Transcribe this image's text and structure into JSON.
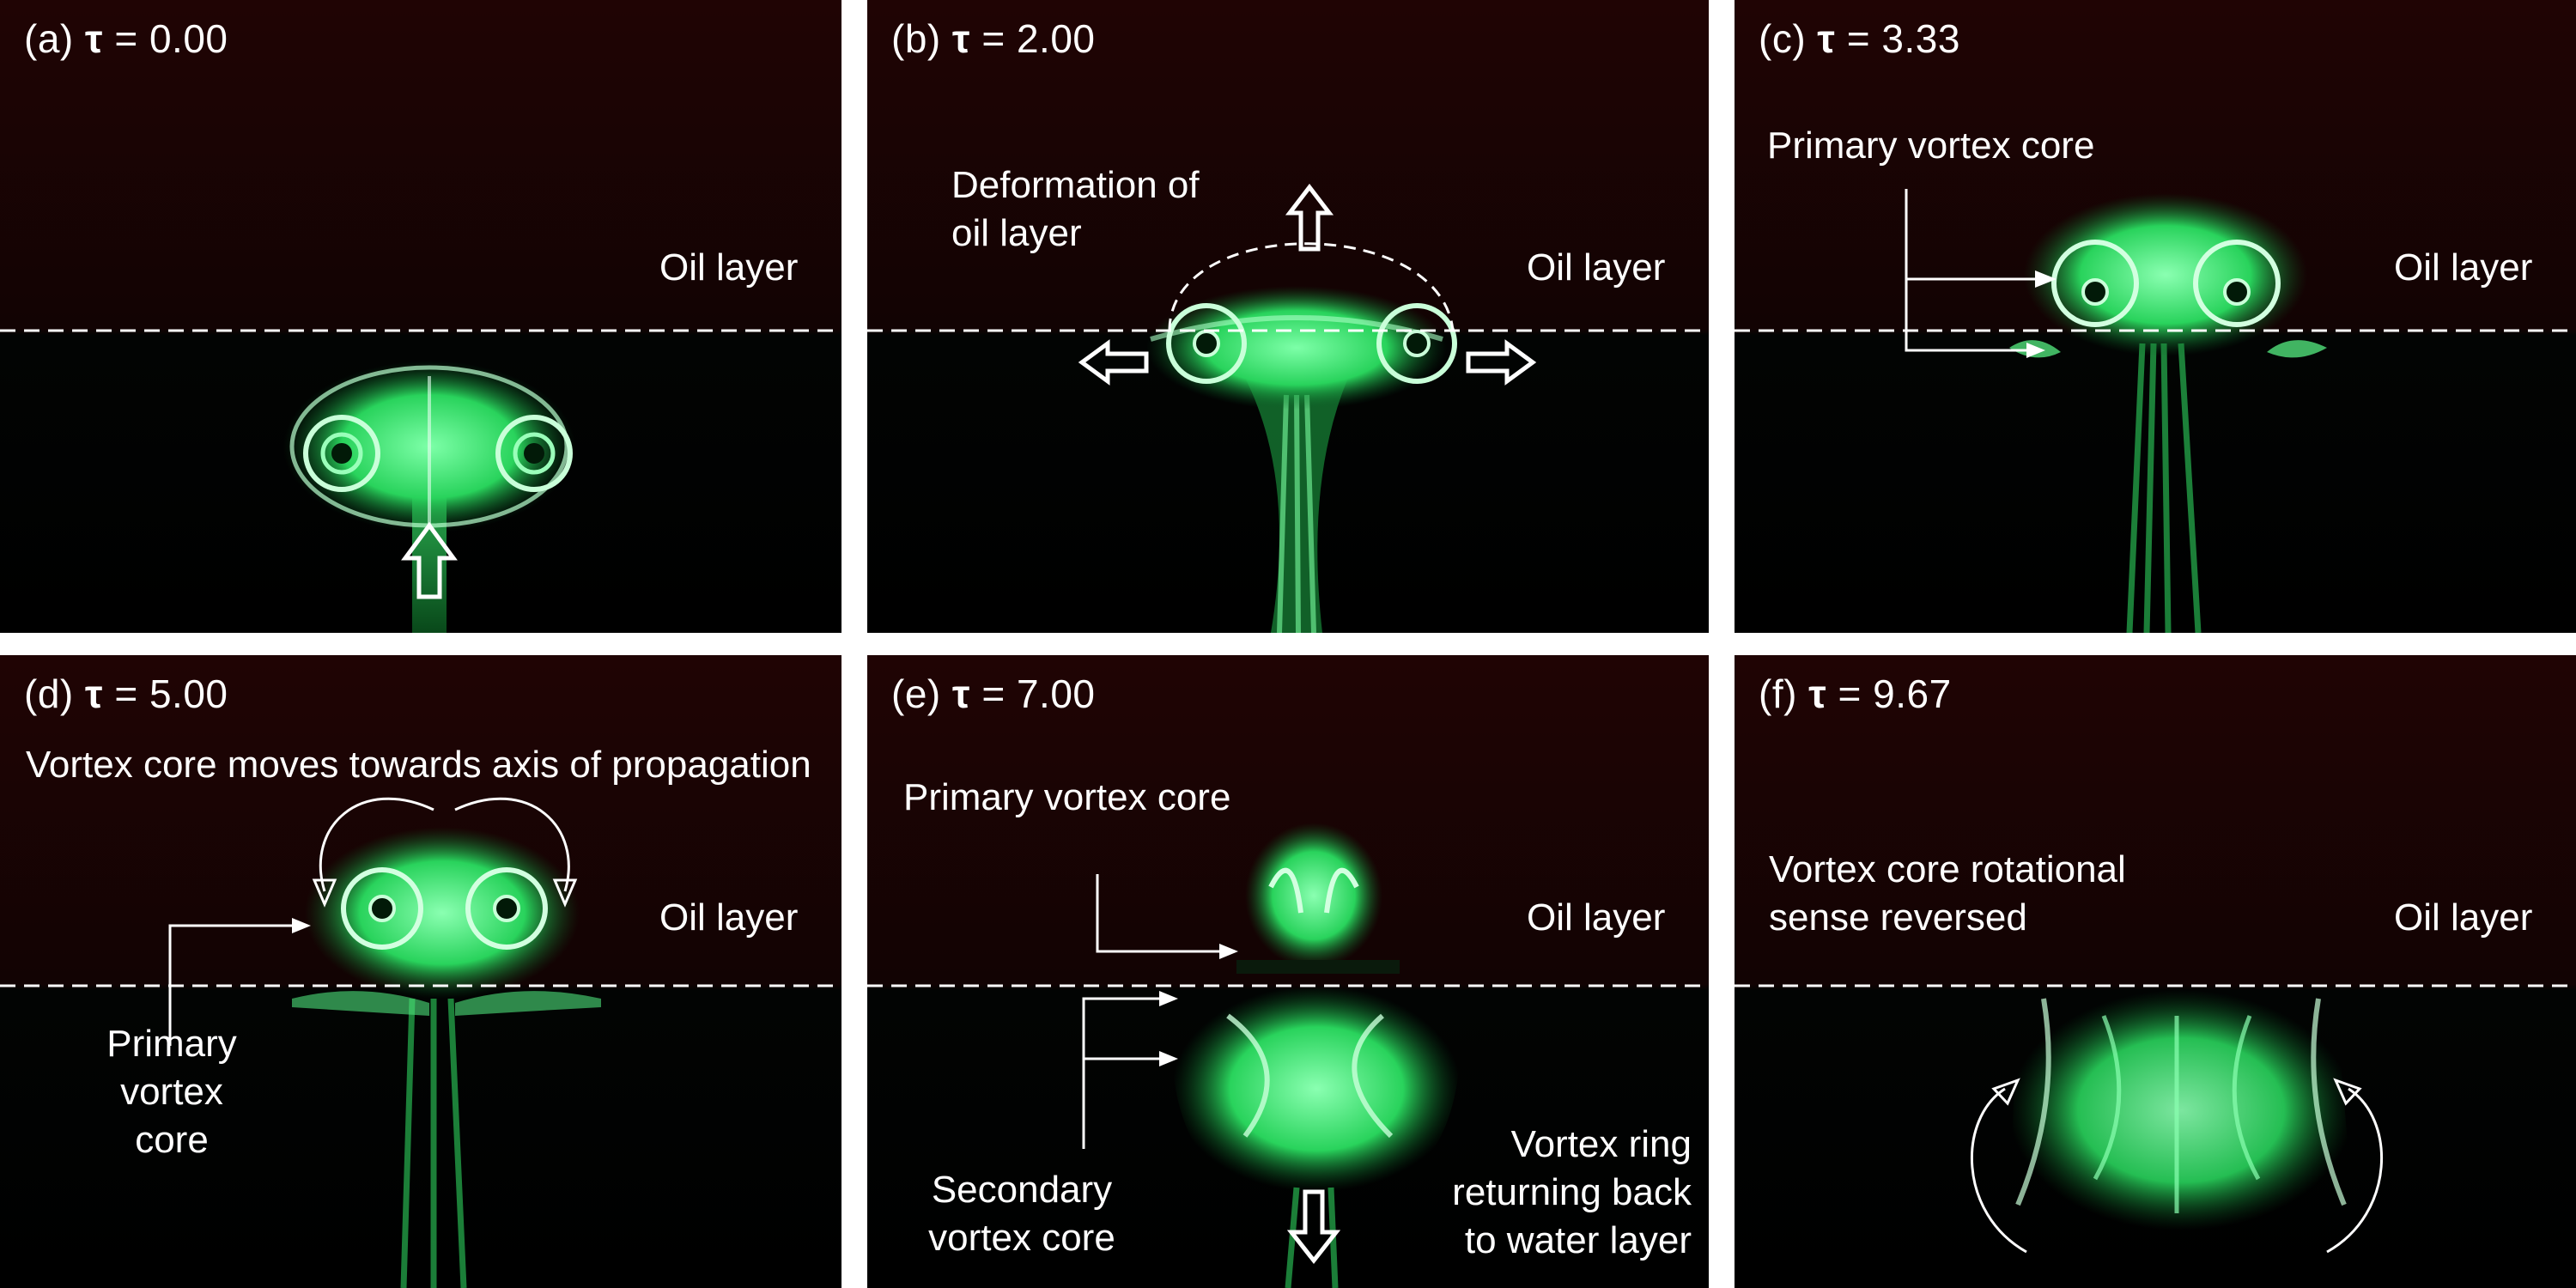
{
  "panels": [
    {
      "id": "a",
      "letter": "(a)",
      "tau": "τ",
      "value": "= 0.00",
      "oil": "Oil layer"
    },
    {
      "id": "b",
      "letter": "(b)",
      "tau": "τ",
      "value": "= 2.00",
      "oil": "Oil layer",
      "deformation": "Deformation of oil layer"
    },
    {
      "id": "c",
      "letter": "(c)",
      "tau": "τ",
      "value": "= 3.33",
      "oil": "Oil layer",
      "primary": "Primary vortex core"
    },
    {
      "id": "d",
      "letter": "(d)",
      "tau": "τ",
      "value": "= 5.00",
      "oil": "Oil layer",
      "moves": "Vortex core moves towards axis of propagation",
      "primary": "Primary vortex core"
    },
    {
      "id": "e",
      "letter": "(e)",
      "tau": "τ",
      "value": "= 7.00",
      "oil": "Oil layer",
      "primary": "Primary vortex core",
      "secondary": "Secondary vortex core",
      "returning": "Vortex ring returning back to water layer"
    },
    {
      "id": "f",
      "letter": "(f)",
      "tau": "τ",
      "value": "= 9.67",
      "oil": "Oil layer",
      "reversed": "Vortex core rotational sense reversed"
    }
  ],
  "colors": {
    "background": "#000000",
    "dye": "#3dff7a",
    "oil_tint": "#2a0505",
    "annotation": "#ffffff"
  }
}
